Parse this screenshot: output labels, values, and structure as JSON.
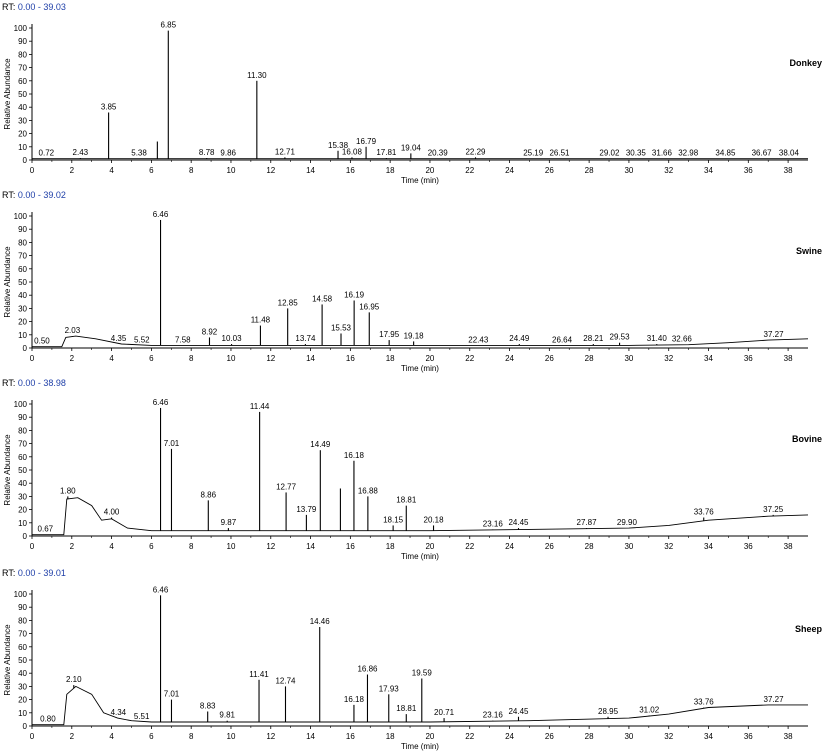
{
  "chart_data": [
    {
      "type": "line",
      "rt_prefix": "RT:",
      "rt_range": "0.00 - 39.03",
      "sample": "Donkey",
      "xlabel": "Time (min)",
      "ylabel": "Relative Abundance",
      "xlim": [
        0,
        39
      ],
      "ylim": [
        0,
        100
      ],
      "x_ticks": [
        0,
        2,
        4,
        6,
        8,
        10,
        12,
        14,
        16,
        18,
        20,
        22,
        24,
        26,
        28,
        30,
        32,
        34,
        36,
        38
      ],
      "y_ticks": [
        0,
        10,
        20,
        30,
        40,
        50,
        60,
        70,
        80,
        90,
        100
      ],
      "baseline": [
        [
          0,
          1
        ],
        [
          39,
          1
        ]
      ],
      "peaks": [
        {
          "x": 0.72,
          "y": 1,
          "label": "0.72"
        },
        {
          "x": 2.43,
          "y": 1.5,
          "label": "2.43"
        },
        {
          "x": 3.85,
          "y": 36,
          "label": "3.85"
        },
        {
          "x": 5.38,
          "y": 1,
          "label": "5.38"
        },
        {
          "x": 6.3,
          "y": 14,
          "label": ""
        },
        {
          "x": 6.85,
          "y": 98,
          "label": "6.85"
        },
        {
          "x": 8.78,
          "y": 1.5,
          "label": "8.78"
        },
        {
          "x": 9.86,
          "y": 1,
          "label": "9.86"
        },
        {
          "x": 11.3,
          "y": 60,
          "label": "11.30"
        },
        {
          "x": 12.71,
          "y": 2,
          "label": "12.71"
        },
        {
          "x": 15.38,
          "y": 7,
          "label": "15.38"
        },
        {
          "x": 16.08,
          "y": 2,
          "label": "16.08"
        },
        {
          "x": 16.79,
          "y": 10,
          "label": "16.79"
        },
        {
          "x": 17.81,
          "y": 1.5,
          "label": "17.81"
        },
        {
          "x": 19.04,
          "y": 5,
          "label": "19.04"
        },
        {
          "x": 20.39,
          "y": 1,
          "label": "20.39"
        },
        {
          "x": 22.29,
          "y": 2,
          "label": "22.29"
        },
        {
          "x": 25.19,
          "y": 1,
          "label": "25.19"
        },
        {
          "x": 26.51,
          "y": 1,
          "label": "26.51"
        },
        {
          "x": 29.02,
          "y": 1,
          "label": "29.02"
        },
        {
          "x": 30.35,
          "y": 1,
          "label": "30.35"
        },
        {
          "x": 31.66,
          "y": 1,
          "label": "31.66"
        },
        {
          "x": 32.98,
          "y": 1,
          "label": "32.98"
        },
        {
          "x": 34.85,
          "y": 1,
          "label": "34.85"
        },
        {
          "x": 36.67,
          "y": 1,
          "label": "36.67"
        },
        {
          "x": 38.04,
          "y": 1,
          "label": "38.04"
        }
      ]
    },
    {
      "type": "line",
      "rt_prefix": "RT:",
      "rt_range": "0.00 - 39.02",
      "sample": "Swine",
      "xlabel": "Time (min)",
      "ylabel": "Relative Abundance",
      "xlim": [
        0,
        39
      ],
      "ylim": [
        0,
        100
      ],
      "x_ticks": [
        0,
        2,
        4,
        6,
        8,
        10,
        12,
        14,
        16,
        18,
        20,
        22,
        24,
        26,
        28,
        30,
        32,
        34,
        36,
        38
      ],
      "y_ticks": [
        0,
        10,
        20,
        30,
        40,
        50,
        60,
        70,
        80,
        90,
        100
      ],
      "baseline": [
        [
          0,
          1
        ],
        [
          1.5,
          1
        ],
        [
          1.7,
          8
        ],
        [
          2.2,
          9
        ],
        [
          3.2,
          7
        ],
        [
          4.5,
          3
        ],
        [
          6,
          2
        ],
        [
          10,
          2
        ],
        [
          20,
          2
        ],
        [
          30,
          2
        ],
        [
          33,
          2.5
        ],
        [
          35,
          4
        ],
        [
          37,
          6
        ],
        [
          39,
          7
        ]
      ],
      "peaks": [
        {
          "x": 0.5,
          "y": 1,
          "label": "0.50"
        },
        {
          "x": 2.03,
          "y": 9,
          "label": "2.03"
        },
        {
          "x": 4.35,
          "y": 3,
          "label": "4.35"
        },
        {
          "x": 5.52,
          "y": 2,
          "label": "5.52"
        },
        {
          "x": 6.46,
          "y": 97,
          "label": "6.46"
        },
        {
          "x": 7.58,
          "y": 2,
          "label": "7.58"
        },
        {
          "x": 8.92,
          "y": 8,
          "label": "8.92"
        },
        {
          "x": 10.03,
          "y": 3,
          "label": "10.03"
        },
        {
          "x": 11.48,
          "y": 17,
          "label": "11.48"
        },
        {
          "x": 12.85,
          "y": 30,
          "label": "12.85"
        },
        {
          "x": 13.74,
          "y": 3,
          "label": "13.74"
        },
        {
          "x": 14.58,
          "y": 33,
          "label": "14.58"
        },
        {
          "x": 15.53,
          "y": 11,
          "label": "15.53"
        },
        {
          "x": 16.19,
          "y": 36,
          "label": "16.19"
        },
        {
          "x": 16.95,
          "y": 27,
          "label": "16.95"
        },
        {
          "x": 17.95,
          "y": 6,
          "label": "17.95"
        },
        {
          "x": 19.18,
          "y": 5,
          "label": "19.18"
        },
        {
          "x": 22.43,
          "y": 2,
          "label": "22.43"
        },
        {
          "x": 24.49,
          "y": 3,
          "label": "24.49"
        },
        {
          "x": 26.64,
          "y": 2,
          "label": "26.64"
        },
        {
          "x": 28.21,
          "y": 3,
          "label": "28.21"
        },
        {
          "x": 29.53,
          "y": 4,
          "label": "29.53"
        },
        {
          "x": 31.4,
          "y": 3,
          "label": "31.40"
        },
        {
          "x": 32.66,
          "y": 2.5,
          "label": "32.66"
        },
        {
          "x": 37.27,
          "y": 6,
          "label": "37.27"
        }
      ]
    },
    {
      "type": "line",
      "rt_prefix": "RT:",
      "rt_range": "0.00 - 38.98",
      "sample": "Bovine",
      "xlabel": "Time (min)",
      "ylabel": "Relative Abundance",
      "xlim": [
        0,
        39
      ],
      "ylim": [
        0,
        100
      ],
      "x_ticks": [
        0,
        2,
        4,
        6,
        8,
        10,
        12,
        14,
        16,
        18,
        20,
        22,
        24,
        26,
        28,
        30,
        32,
        34,
        36,
        38
      ],
      "y_ticks": [
        0,
        10,
        20,
        30,
        40,
        50,
        60,
        70,
        80,
        90,
        100
      ],
      "baseline": [
        [
          0,
          1
        ],
        [
          1.6,
          1
        ],
        [
          1.75,
          28
        ],
        [
          2.3,
          29
        ],
        [
          3,
          23
        ],
        [
          3.5,
          12
        ],
        [
          4,
          13
        ],
        [
          4.8,
          6
        ],
        [
          6,
          4
        ],
        [
          10,
          4
        ],
        [
          20,
          4
        ],
        [
          25,
          5
        ],
        [
          30,
          6
        ],
        [
          32,
          8
        ],
        [
          34,
          12
        ],
        [
          37,
          15
        ],
        [
          39,
          16
        ]
      ],
      "peaks": [
        {
          "x": 0.67,
          "y": 1,
          "label": "0.67"
        },
        {
          "x": 1.8,
          "y": 30,
          "label": "1.80"
        },
        {
          "x": 4.0,
          "y": 14,
          "label": "4.00"
        },
        {
          "x": 6.46,
          "y": 97,
          "label": "6.46"
        },
        {
          "x": 7.01,
          "y": 66,
          "label": "7.01"
        },
        {
          "x": 8.86,
          "y": 27,
          "label": "8.86"
        },
        {
          "x": 9.87,
          "y": 6,
          "label": "9.87"
        },
        {
          "x": 11.44,
          "y": 94,
          "label": "11.44"
        },
        {
          "x": 12.77,
          "y": 33,
          "label": "12.77"
        },
        {
          "x": 13.79,
          "y": 16,
          "label": "13.79"
        },
        {
          "x": 14.49,
          "y": 65,
          "label": "14.49"
        },
        {
          "x": 15.5,
          "y": 36,
          "label": ""
        },
        {
          "x": 16.18,
          "y": 57,
          "label": "16.18"
        },
        {
          "x": 16.88,
          "y": 30,
          "label": "16.88"
        },
        {
          "x": 18.15,
          "y": 8,
          "label": "18.15"
        },
        {
          "x": 18.81,
          "y": 23,
          "label": "18.81"
        },
        {
          "x": 20.18,
          "y": 8,
          "label": "20.18"
        },
        {
          "x": 23.16,
          "y": 5,
          "label": "23.16"
        },
        {
          "x": 24.45,
          "y": 6,
          "label": "24.45"
        },
        {
          "x": 27.87,
          "y": 6,
          "label": "27.87"
        },
        {
          "x": 29.9,
          "y": 6,
          "label": "29.90"
        },
        {
          "x": 33.76,
          "y": 14,
          "label": "33.76"
        },
        {
          "x": 37.25,
          "y": 16,
          "label": "37.25"
        }
      ]
    },
    {
      "type": "line",
      "rt_prefix": "RT:",
      "rt_range": "0.00 - 39.01",
      "sample": "Sheep",
      "xlabel": "Time (min)",
      "ylabel": "Relative Abundance",
      "xlim": [
        0,
        39
      ],
      "ylim": [
        0,
        100
      ],
      "x_ticks": [
        0,
        2,
        4,
        6,
        8,
        10,
        12,
        14,
        16,
        18,
        20,
        22,
        24,
        26,
        28,
        30,
        32,
        34,
        36,
        38
      ],
      "y_ticks": [
        0,
        10,
        20,
        30,
        40,
        50,
        60,
        70,
        80,
        90,
        100
      ],
      "baseline": [
        [
          0,
          1
        ],
        [
          1.6,
          1
        ],
        [
          1.75,
          24
        ],
        [
          2.2,
          30
        ],
        [
          3,
          24
        ],
        [
          3.6,
          10
        ],
        [
          4.3,
          6
        ],
        [
          5,
          4
        ],
        [
          6,
          3
        ],
        [
          10,
          3
        ],
        [
          20,
          3
        ],
        [
          25,
          4
        ],
        [
          30,
          6
        ],
        [
          32,
          9
        ],
        [
          34,
          14
        ],
        [
          37,
          16
        ],
        [
          39,
          16
        ]
      ],
      "peaks": [
        {
          "x": 0.8,
          "y": 1,
          "label": "0.80"
        },
        {
          "x": 2.1,
          "y": 31,
          "label": "2.10"
        },
        {
          "x": 4.34,
          "y": 6,
          "label": "4.34"
        },
        {
          "x": 5.51,
          "y": 3,
          "label": "5.51"
        },
        {
          "x": 6.46,
          "y": 99,
          "label": "6.46"
        },
        {
          "x": 7.01,
          "y": 20,
          "label": "7.01"
        },
        {
          "x": 8.83,
          "y": 11,
          "label": "8.83"
        },
        {
          "x": 9.81,
          "y": 4,
          "label": "9.81"
        },
        {
          "x": 11.41,
          "y": 35,
          "label": "11.41"
        },
        {
          "x": 12.74,
          "y": 30,
          "label": "12.74"
        },
        {
          "x": 14.46,
          "y": 75,
          "label": "14.46"
        },
        {
          "x": 16.18,
          "y": 16,
          "label": "16.18"
        },
        {
          "x": 16.86,
          "y": 39,
          "label": "16.86"
        },
        {
          "x": 17.93,
          "y": 24,
          "label": "17.93"
        },
        {
          "x": 18.81,
          "y": 9,
          "label": "18.81"
        },
        {
          "x": 19.59,
          "y": 36,
          "label": "19.59"
        },
        {
          "x": 20.71,
          "y": 6,
          "label": "20.71"
        },
        {
          "x": 23.16,
          "y": 4,
          "label": "23.16"
        },
        {
          "x": 24.45,
          "y": 7,
          "label": "24.45"
        },
        {
          "x": 28.95,
          "y": 7,
          "label": "28.95"
        },
        {
          "x": 31.02,
          "y": 8,
          "label": "31.02"
        },
        {
          "x": 33.76,
          "y": 14,
          "label": "33.76"
        },
        {
          "x": 37.27,
          "y": 16,
          "label": "37.27"
        }
      ]
    }
  ],
  "colors": {
    "rt_range": "#1f3fa8",
    "trace": "#000000",
    "axis": "#000000"
  }
}
